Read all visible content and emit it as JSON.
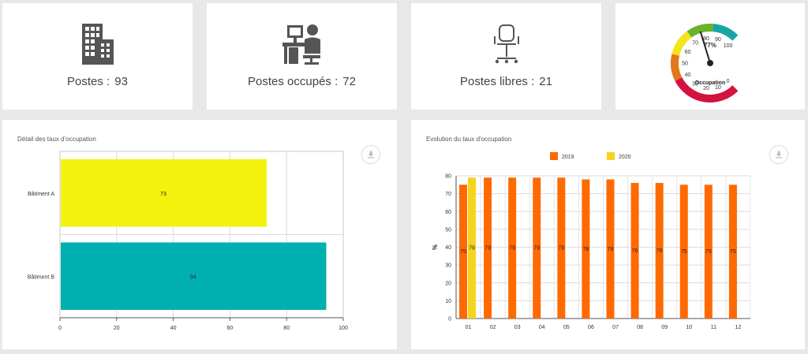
{
  "kpis": [
    {
      "label": "Postes :",
      "value": "93",
      "icon": "building-icon"
    },
    {
      "label": "Postes occupés :",
      "value": "72",
      "icon": "workstation-icon"
    },
    {
      "label": "Postes libres :",
      "value": "21",
      "icon": "office-chair-icon"
    }
  ],
  "gauge": {
    "value": 77,
    "value_text": "77%",
    "label": "Occupation",
    "ticks": [
      "0",
      "10",
      "20",
      "30",
      "40",
      "50",
      "60",
      "70",
      "80",
      "90",
      "100"
    ],
    "colors": [
      "#d4123f",
      "#e2781a",
      "#f2e51c",
      "#6bb32a",
      "#18a6a4"
    ]
  },
  "panels": {
    "detail_title": "Détail des taux d'occupation",
    "evolution_title": "Evolution du taux d'occupation"
  },
  "chart_data": [
    {
      "type": "bar",
      "orientation": "horizontal",
      "title": "Détail des taux d'occupation",
      "categories": [
        "Bâtiment A",
        "Bâtiment B"
      ],
      "values": [
        73,
        94
      ],
      "colors": [
        "#f2f20c",
        "#00afaf"
      ],
      "xlim": [
        0,
        100
      ],
      "xticks": [
        "0",
        "20",
        "40",
        "60",
        "80",
        "100"
      ],
      "grid": true
    },
    {
      "type": "bar",
      "title": "Evolution du taux d'occupation",
      "categories": [
        "01",
        "02",
        "03",
        "04",
        "05",
        "06",
        "07",
        "08",
        "09",
        "10",
        "11",
        "12"
      ],
      "series": [
        {
          "name": "2019",
          "color": "#ff6a00",
          "values": [
            75,
            79,
            79,
            79,
            79,
            78,
            78,
            76,
            76,
            75,
            75,
            75
          ]
        },
        {
          "name": "2020",
          "color": "#f5d31f",
          "values": [
            79,
            null,
            null,
            null,
            null,
            null,
            null,
            null,
            null,
            null,
            null,
            null
          ]
        }
      ],
      "ylabel": "%",
      "ylim": [
        0,
        80
      ],
      "yticks": [
        "0",
        "10",
        "20",
        "30",
        "40",
        "50",
        "60",
        "70",
        "80"
      ],
      "legend": "top",
      "grid": true
    }
  ]
}
